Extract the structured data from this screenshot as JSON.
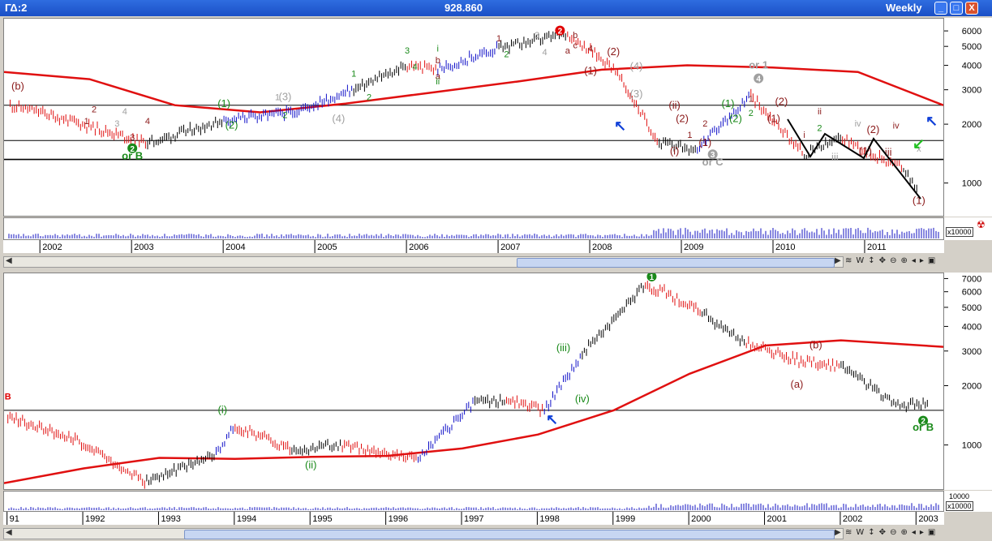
{
  "window": {
    "title": "ΓΔ:2",
    "price": "928.860",
    "timeframe": "Weekly",
    "buttons": [
      "_",
      "□",
      "X"
    ]
  },
  "toolbar_icons": [
    "hand-icon",
    "weekly-toggle",
    "vertical-zoom-icon",
    "move-icon",
    "zoom-out-icon",
    "zoom-in-icon",
    "prev-icon",
    "next-icon",
    "maximize-icon"
  ],
  "toolbar_label": "W",
  "volume_scale_label": "x10000",
  "volume_top_label": "10000",
  "colors": {
    "up": "#1010c8",
    "down": "#e01010",
    "neutral": "#000000",
    "moving_average": "#e01010",
    "wave_green": "#1a8a1a",
    "wave_darkred": "#8b1a1a",
    "wave_gray": "#a0a0a0",
    "arrow_blue": "#1040d8",
    "arrow_green": "#20c020"
  },
  "chart_data": [
    {
      "type": "line",
      "name": "upper-weekly-price",
      "scale": "log",
      "x": [
        "2001-09",
        "2002-01",
        "2003-03",
        "2004-01",
        "2004-10",
        "2005-06",
        "2006-01",
        "2006-05",
        "2007-01",
        "2007-10",
        "2008-04",
        "2008-10",
        "2009-03",
        "2009-10",
        "2010-05",
        "2010-10",
        "2011-02",
        "2011-06",
        "2011-08"
      ],
      "y": [
        2500,
        2300,
        1600,
        2100,
        2300,
        3000,
        4000,
        3800,
        4900,
        5800,
        3900,
        1600,
        1500,
        2800,
        1400,
        1700,
        1400,
        1200,
        900
      ],
      "y_ticks": [
        6000,
        5000,
        4000,
        3000,
        2000,
        1000
      ],
      "x_ticks": [
        "2002",
        "2003",
        "2004",
        "2005",
        "2006",
        "2007",
        "2008",
        "2009",
        "2010",
        "2011"
      ],
      "horizontal_lines": [
        2500,
        1650,
        1320
      ],
      "moving_average": [
        3700,
        3400,
        2500,
        2300,
        2550,
        2900,
        3300,
        3800,
        4000,
        3900,
        3700,
        2500
      ],
      "labels": [
        {
          "t": "(b)",
          "color": "darkred",
          "x": "2001-10",
          "y": 3000
        },
        {
          "t": "2",
          "color": "green",
          "x": "2003-01",
          "y": 1450,
          "circle": true
        },
        {
          "t": "or B",
          "color": "green",
          "x": "2003-01",
          "y": 1320
        },
        {
          "t": "1",
          "color": "darkred",
          "x": "2002-07",
          "y": 2000
        },
        {
          "t": "2",
          "color": "darkred",
          "x": "2002-08",
          "y": 2300
        },
        {
          "t": "3",
          "color": "gray",
          "x": "2002-11",
          "y": 1950
        },
        {
          "t": "4",
          "color": "gray",
          "x": "2002-12",
          "y": 2250
        },
        {
          "t": "3",
          "color": "darkred",
          "x": "2003-01",
          "y": 1650
        },
        {
          "t": "4",
          "color": "darkred",
          "x": "2003-03",
          "y": 2000
        },
        {
          "t": "(1)",
          "color": "green",
          "x": "2004-01",
          "y": 2450
        },
        {
          "t": "(2)",
          "color": "green",
          "x": "2004-02",
          "y": 1900
        },
        {
          "t": "1",
          "color": "gray",
          "x": "2004-08",
          "y": 2650
        },
        {
          "t": "(3)",
          "color": "gray",
          "x": "2004-09",
          "y": 2650
        },
        {
          "t": "2",
          "color": "green",
          "x": "2004-09",
          "y": 2150
        },
        {
          "t": "(4)",
          "color": "gray",
          "x": "2005-04",
          "y": 2050
        },
        {
          "t": "1",
          "color": "green",
          "x": "2005-06",
          "y": 3500
        },
        {
          "t": "2",
          "color": "green",
          "x": "2005-08",
          "y": 2650
        },
        {
          "t": "3",
          "color": "green",
          "x": "2006-01",
          "y": 4600
        },
        {
          "t": "4",
          "color": "green",
          "x": "2006-02",
          "y": 3800
        },
        {
          "t": "i",
          "color": "green",
          "x": "2006-05",
          "y": 4700
        },
        {
          "t": "b",
          "color": "darkred",
          "x": "2006-05",
          "y": 4100
        },
        {
          "t": "a",
          "color": "darkred",
          "x": "2006-05",
          "y": 3400
        },
        {
          "t": "ii",
          "color": "green",
          "x": "2006-05",
          "y": 3200
        },
        {
          "t": "1",
          "color": "darkred",
          "x": "2007-01",
          "y": 5300
        },
        {
          "t": "2",
          "color": "green",
          "x": "2007-02",
          "y": 4400
        },
        {
          "t": "3",
          "color": "gray",
          "x": "2007-06",
          "y": 5500
        },
        {
          "t": "4",
          "color": "gray",
          "x": "2007-07",
          "y": 4500
        },
        {
          "t": "2",
          "color": "red",
          "x": "2007-09",
          "y": 5800,
          "circle": true
        },
        {
          "t": "b",
          "color": "darkred",
          "x": "2007-11",
          "y": 5500
        },
        {
          "t": "a",
          "color": "darkred",
          "x": "2007-10",
          "y": 4600
        },
        {
          "t": "c",
          "color": "darkred",
          "x": "2007-11",
          "y": 4900
        },
        {
          "t": "4",
          "color": "darkred",
          "x": "2008-01",
          "y": 4700
        },
        {
          "t": "(2)",
          "color": "darkred",
          "x": "2008-04",
          "y": 4500
        },
        {
          "t": "(1)",
          "color": "darkred",
          "x": "2008-01",
          "y": 3600
        },
        {
          "t": "(4)",
          "color": "gray",
          "x": "2008-07",
          "y": 3800
        },
        {
          "t": "(3)",
          "color": "gray",
          "x": "2008-07",
          "y": 2750
        },
        {
          "t": "(ii)",
          "color": "darkred",
          "x": "2008-12",
          "y": 2400
        },
        {
          "t": "(i)",
          "color": "darkred",
          "x": "2008-12",
          "y": 1400
        },
        {
          "t": "(2)",
          "color": "darkred",
          "x": "2009-01",
          "y": 2050
        },
        {
          "t": "2",
          "color": "darkred",
          "x": "2009-04",
          "y": 1950
        },
        {
          "t": "1",
          "color": "darkred",
          "x": "2009-02",
          "y": 1700
        },
        {
          "t": "(1)",
          "color": "darkred",
          "x": "2009-04",
          "y": 1550
        },
        {
          "t": "3",
          "color": "gray",
          "x": "2009-05",
          "y": 1350,
          "circle": true
        },
        {
          "t": "or C",
          "color": "gray",
          "x": "2009-05",
          "y": 1230
        },
        {
          "t": "(1)",
          "color": "green",
          "x": "2009-07",
          "y": 2450
        },
        {
          "t": "(2)",
          "color": "green",
          "x": "2009-08",
          "y": 2050
        },
        {
          "t": "1",
          "color": "darkred",
          "x": "2009-10",
          "y": 2600
        },
        {
          "t": "2",
          "color": "green",
          "x": "2009-10",
          "y": 2200
        },
        {
          "t": "4",
          "color": "gray",
          "x": "2009-11",
          "y": 3300,
          "circle": true
        },
        {
          "t": "or 1",
          "color": "gray",
          "x": "2009-11",
          "y": 3850
        },
        {
          "t": "(2)",
          "color": "darkred",
          "x": "2010-02",
          "y": 2500
        },
        {
          "t": "(1)",
          "color": "darkred",
          "x": "2010-01",
          "y": 2050
        },
        {
          "t": "ii",
          "color": "darkred",
          "x": "2010-07",
          "y": 2250
        },
        {
          "t": "2",
          "color": "green",
          "x": "2010-07",
          "y": 1850
        },
        {
          "t": "i",
          "color": "darkred",
          "x": "2010-05",
          "y": 1700
        },
        {
          "t": "iii",
          "color": "gray",
          "x": "2010-09",
          "y": 1300
        },
        {
          "t": "iv",
          "color": "gray",
          "x": "2010-12",
          "y": 1950
        },
        {
          "t": "(1)",
          "color": "darkred",
          "x": "2011-01",
          "y": 1400
        },
        {
          "t": "(2)",
          "color": "darkred",
          "x": "2011-02",
          "y": 1800
        },
        {
          "t": "iii",
          "color": "darkred",
          "x": "2011-04",
          "y": 1380
        },
        {
          "t": "iv",
          "color": "darkred",
          "x": "2011-05",
          "y": 1900
        },
        {
          "t": "x",
          "color": "gray",
          "x": "2011-08",
          "y": 1450
        },
        {
          "t": "(1)",
          "color": "darkred",
          "x": "2011-08",
          "y": 780
        }
      ]
    },
    {
      "type": "line",
      "name": "lower-weekly-price",
      "scale": "log",
      "x": [
        "1991-01",
        "1991-12",
        "1992-11",
        "1993-10",
        "1994-01",
        "1994-10",
        "1995-06",
        "1996-06",
        "1997-03",
        "1997-08",
        "1998-02",
        "1998-08",
        "1999-06",
        "1999-09",
        "2000-03",
        "2000-10",
        "2001-06",
        "2002-01",
        "2002-10",
        "2003-03"
      ],
      "y": [
        1400,
        1050,
        650,
        900,
        1250,
        950,
        1000,
        850,
        1650,
        1700,
        1500,
        2900,
        6500,
        6000,
        4700,
        3300,
        2700,
        2500,
        1600,
        1600
      ],
      "y_ticks": [
        7000,
        6000,
        5000,
        4000,
        3000,
        2000,
        1000
      ],
      "x_ticks": [
        "91",
        "1992",
        "1993",
        "1994",
        "1995",
        "1996",
        "1997",
        "1998",
        "1999",
        "2000",
        "2001",
        "2002",
        "2003"
      ],
      "horizontal_lines": [
        1500
      ],
      "labels": [
        {
          "t": "B",
          "color": "red",
          "x": "1991-01",
          "y": 1700
        },
        {
          "t": "2",
          "color": "green",
          "x": "2003-02",
          "y": 1280,
          "circle": true
        },
        {
          "t": "or B",
          "color": "green",
          "x": "2003-02",
          "y": 1180
        },
        {
          "t": "1",
          "color": "green",
          "x": "1999-07",
          "y": 6900,
          "circle": true
        },
        {
          "t": "(i)",
          "color": "green",
          "x": "1993-11",
          "y": 1450
        },
        {
          "t": "(ii)",
          "color": "green",
          "x": "1995-01",
          "y": 760
        },
        {
          "t": "(iii)",
          "color": "green",
          "x": "1998-05",
          "y": 3000
        },
        {
          "t": "(iv)",
          "color": "green",
          "x": "1998-08",
          "y": 1650
        },
        {
          "t": "(a)",
          "color": "darkred",
          "x": "2001-06",
          "y": 1950
        },
        {
          "t": "(b)",
          "color": "darkred",
          "x": "2001-09",
          "y": 3100
        }
      ]
    }
  ]
}
